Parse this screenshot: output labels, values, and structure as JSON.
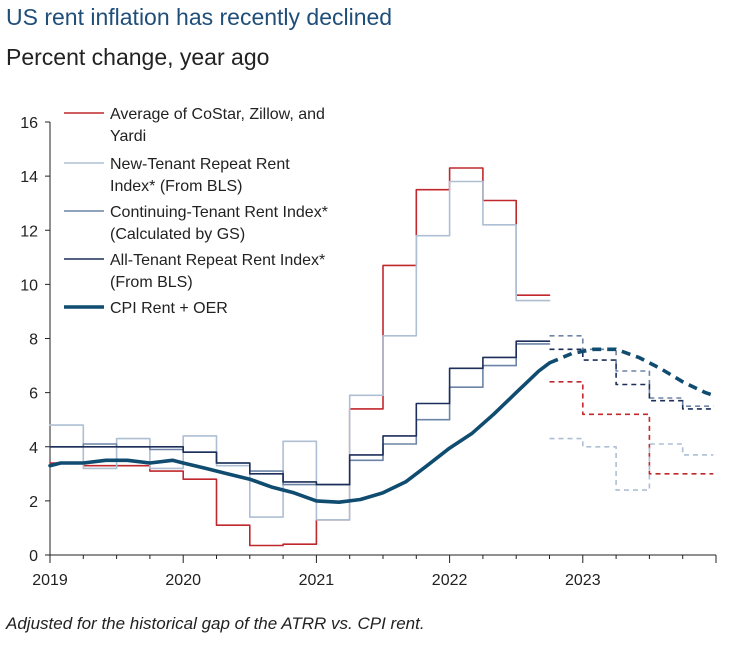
{
  "title": "US rent inflation has recently declined",
  "subtitle": "Percent change, year ago",
  "footnote": "Adjusted for the historical gap of the ATRR vs. CPI rent.",
  "chart_data": {
    "type": "line",
    "ylim": [
      0,
      16
    ],
    "yticks": [
      "0",
      "2",
      "4",
      "6",
      "8",
      "10",
      "12",
      "14",
      "16"
    ],
    "xlim": [
      2019.0,
      2024.0
    ],
    "xticks": [
      {
        "label": "2019",
        "x": 2019.0
      },
      {
        "label": "2020",
        "x": 2020.0
      },
      {
        "label": "2021",
        "x": 2021.0
      },
      {
        "label": "2022",
        "x": 2022.0
      },
      {
        "label": "2023",
        "x": 2023.0
      }
    ],
    "grid": false,
    "legend_position": "top-left",
    "forecast_start_note": "dashed segments are projections",
    "series": [
      {
        "name_lines": [
          "Average of CoStar, Zillow, and",
          "Yardi"
        ],
        "color": "#c0282d",
        "width": 1.6,
        "step": true,
        "actual": [
          [
            2019.0,
            3.4
          ],
          [
            2019.25,
            3.3
          ],
          [
            2019.5,
            3.3
          ],
          [
            2019.75,
            3.1
          ],
          [
            2020.0,
            2.8
          ],
          [
            2020.25,
            1.1
          ],
          [
            2020.5,
            0.35
          ],
          [
            2020.75,
            0.4
          ],
          [
            2021.0,
            1.3
          ],
          [
            2021.25,
            5.4
          ],
          [
            2021.5,
            10.7
          ],
          [
            2021.75,
            13.5
          ],
          [
            2022.0,
            14.3
          ],
          [
            2022.25,
            13.1
          ],
          [
            2022.5,
            9.6
          ],
          [
            2022.75,
            9.6
          ]
        ],
        "forecast": [
          [
            2022.75,
            6.4
          ],
          [
            2023.0,
            5.2
          ],
          [
            2023.25,
            5.2
          ],
          [
            2023.5,
            3.0
          ],
          [
            2023.75,
            3.0
          ],
          [
            2023.98,
            3.0
          ]
        ]
      },
      {
        "name_lines": [
          "New-Tenant Repeat Rent",
          "Index* (From BLS)"
        ],
        "color": "#aebfd4",
        "width": 1.6,
        "step": true,
        "actual": [
          [
            2019.0,
            4.8
          ],
          [
            2019.25,
            3.2
          ],
          [
            2019.5,
            4.3
          ],
          [
            2019.75,
            3.2
          ],
          [
            2020.0,
            4.4
          ],
          [
            2020.25,
            3.3
          ],
          [
            2020.5,
            1.4
          ],
          [
            2020.75,
            4.2
          ],
          [
            2021.0,
            1.3
          ],
          [
            2021.25,
            5.9
          ],
          [
            2021.5,
            8.1
          ],
          [
            2021.75,
            11.8
          ],
          [
            2022.0,
            13.8
          ],
          [
            2022.25,
            12.2
          ],
          [
            2022.5,
            9.4
          ],
          [
            2022.75,
            9.4
          ]
        ],
        "forecast": [
          [
            2022.75,
            4.3
          ],
          [
            2023.0,
            4.0
          ],
          [
            2023.25,
            2.4
          ],
          [
            2023.5,
            4.1
          ],
          [
            2023.75,
            3.7
          ],
          [
            2023.98,
            3.7
          ]
        ]
      },
      {
        "name_lines": [
          "Continuing-Tenant Rent Index*",
          "(Calculated by GS)"
        ],
        "color": "#6d84a7",
        "width": 1.6,
        "step": true,
        "actual": [
          [
            2019.0,
            4.0
          ],
          [
            2019.25,
            4.1
          ],
          [
            2019.5,
            4.0
          ],
          [
            2019.75,
            3.9
          ],
          [
            2020.0,
            3.8
          ],
          [
            2020.25,
            3.4
          ],
          [
            2020.5,
            3.1
          ],
          [
            2020.75,
            2.6
          ],
          [
            2021.0,
            2.6
          ],
          [
            2021.25,
            3.5
          ],
          [
            2021.5,
            4.1
          ],
          [
            2021.75,
            5.0
          ],
          [
            2022.0,
            6.2
          ],
          [
            2022.25,
            7.0
          ],
          [
            2022.5,
            7.8
          ],
          [
            2022.75,
            7.8
          ]
        ],
        "forecast": [
          [
            2022.75,
            8.1
          ],
          [
            2023.0,
            7.6
          ],
          [
            2023.25,
            6.8
          ],
          [
            2023.5,
            5.8
          ],
          [
            2023.75,
            5.5
          ],
          [
            2023.98,
            5.5
          ]
        ]
      },
      {
        "name_lines": [
          "All-Tenant Repeat Rent Index*",
          "(From BLS)"
        ],
        "color": "#1c2f5a",
        "width": 1.6,
        "step": true,
        "actual": [
          [
            2019.0,
            4.0
          ],
          [
            2019.25,
            4.0
          ],
          [
            2019.5,
            4.0
          ],
          [
            2019.75,
            4.0
          ],
          [
            2020.0,
            3.8
          ],
          [
            2020.25,
            3.4
          ],
          [
            2020.5,
            3.0
          ],
          [
            2020.75,
            2.7
          ],
          [
            2021.0,
            2.6
          ],
          [
            2021.25,
            3.7
          ],
          [
            2021.5,
            4.4
          ],
          [
            2021.75,
            5.6
          ],
          [
            2022.0,
            6.9
          ],
          [
            2022.25,
            7.3
          ],
          [
            2022.5,
            7.9
          ],
          [
            2022.75,
            7.9
          ]
        ],
        "forecast": [
          [
            2022.75,
            7.6
          ],
          [
            2023.0,
            7.2
          ],
          [
            2023.25,
            6.3
          ],
          [
            2023.5,
            5.7
          ],
          [
            2023.75,
            5.4
          ],
          [
            2023.98,
            5.4
          ]
        ]
      },
      {
        "name_lines": [
          "CPI Rent + OER"
        ],
        "color": "#0f4c70",
        "width": 3.6,
        "step": false,
        "actual": [
          [
            2019.0,
            3.3
          ],
          [
            2019.08,
            3.4
          ],
          [
            2019.25,
            3.4
          ],
          [
            2019.42,
            3.5
          ],
          [
            2019.58,
            3.5
          ],
          [
            2019.75,
            3.4
          ],
          [
            2019.92,
            3.5
          ],
          [
            2020.0,
            3.4
          ],
          [
            2020.17,
            3.2
          ],
          [
            2020.33,
            3.0
          ],
          [
            2020.5,
            2.8
          ],
          [
            2020.67,
            2.5
          ],
          [
            2020.83,
            2.3
          ],
          [
            2021.0,
            2.0
          ],
          [
            2021.17,
            1.95
          ],
          [
            2021.33,
            2.05
          ],
          [
            2021.5,
            2.3
          ],
          [
            2021.67,
            2.7
          ],
          [
            2021.83,
            3.3
          ],
          [
            2022.0,
            3.95
          ],
          [
            2022.17,
            4.5
          ],
          [
            2022.33,
            5.2
          ],
          [
            2022.5,
            6.0
          ],
          [
            2022.67,
            6.8
          ],
          [
            2022.75,
            7.1
          ]
        ],
        "forecast": [
          [
            2022.75,
            7.1
          ],
          [
            2022.92,
            7.45
          ],
          [
            2023.08,
            7.6
          ],
          [
            2023.25,
            7.6
          ],
          [
            2023.42,
            7.3
          ],
          [
            2023.58,
            6.9
          ],
          [
            2023.75,
            6.4
          ],
          [
            2023.92,
            6.0
          ],
          [
            2023.98,
            5.9
          ]
        ]
      }
    ]
  }
}
